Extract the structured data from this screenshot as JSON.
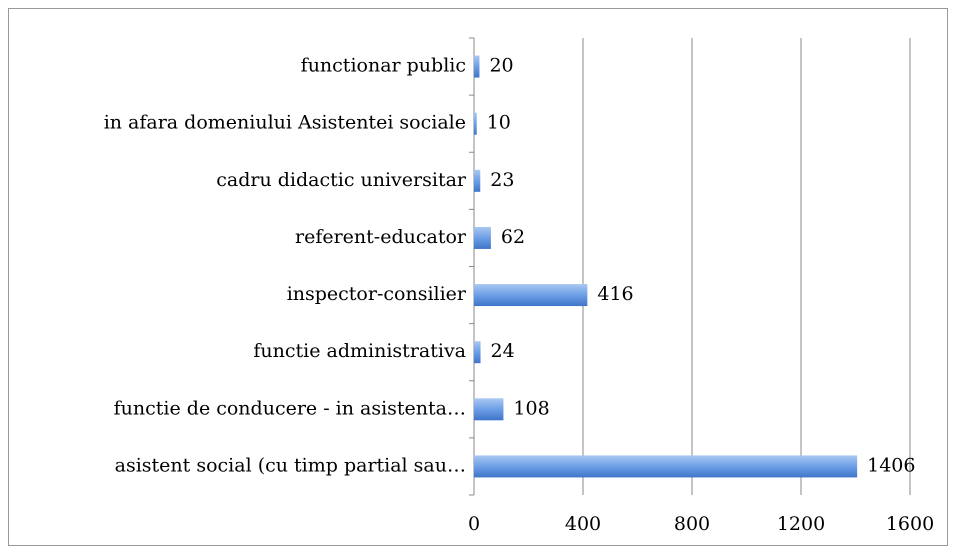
{
  "chart_data": {
    "type": "barh",
    "categories": [
      "functionar public",
      "in afara domeniului Asistentei sociale",
      "cadru didactic universitar",
      "referent-educator",
      "inspector-consilier",
      "functie administrativa",
      "functie de conducere - in asistenta…",
      "asistent social (cu timp partial sau…"
    ],
    "values": [
      20,
      10,
      23,
      62,
      416,
      24,
      108,
      1406
    ],
    "color": "#4f86d6",
    "xlim": [
      0,
      1600
    ],
    "xticks": [
      0,
      400,
      800,
      1200,
      1600
    ],
    "grid": true
  }
}
